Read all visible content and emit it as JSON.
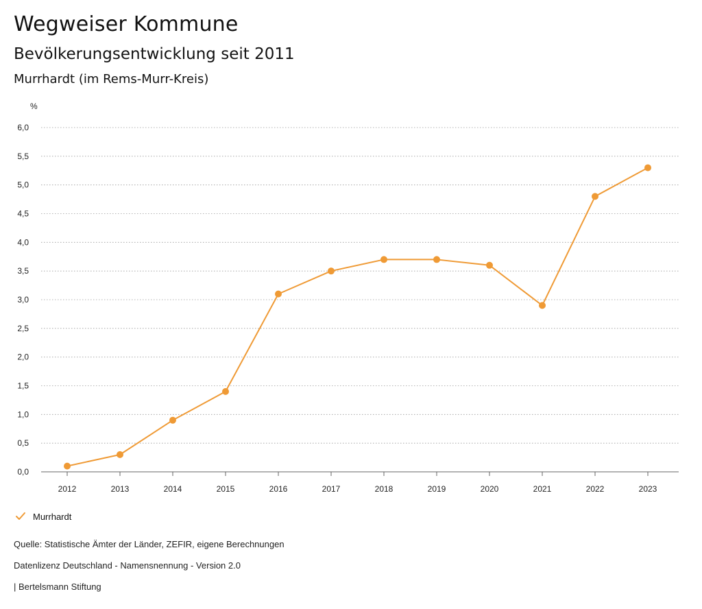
{
  "header": {
    "title": "Wegweiser Kommune",
    "subtitle": "Bevölkerungsentwicklung seit 2011",
    "location": "Murrhardt (im Rems-Murr-Kreis)"
  },
  "chart_data": {
    "type": "line",
    "title": "Bevölkerungsentwicklung seit 2011",
    "xlabel": "",
    "ylabel": "%",
    "ylim": [
      0,
      6
    ],
    "y_ticks": [
      "0,0",
      "0,5",
      "1,0",
      "1,5",
      "2,0",
      "2,5",
      "3,0",
      "3,5",
      "4,0",
      "4,5",
      "5,0",
      "5,5",
      "6,0"
    ],
    "categories": [
      "2012",
      "2013",
      "2014",
      "2015",
      "2016",
      "2017",
      "2018",
      "2019",
      "2020",
      "2021",
      "2022",
      "2023"
    ],
    "series": [
      {
        "name": "Murrhardt",
        "color": "#ef9a35",
        "values": [
          0.1,
          0.3,
          0.9,
          1.4,
          3.1,
          3.5,
          3.7,
          3.7,
          3.6,
          2.9,
          4.8,
          5.3
        ]
      }
    ],
    "legend_position": "bottom-left",
    "grid": true
  },
  "legend": {
    "label": "Murrhardt",
    "icon": "check-icon"
  },
  "footer": {
    "source": "Quelle: Statistische Ämter der Länder, ZEFIR, eigene Berechnungen",
    "license": "Datenlizenz Deutschland - Namensnennung - Version 2.0",
    "publisher": "| Bertelsmann Stiftung"
  },
  "colors": {
    "accent": "#ef9a35",
    "grid": "#9a9a9a",
    "axis": "#666666"
  }
}
